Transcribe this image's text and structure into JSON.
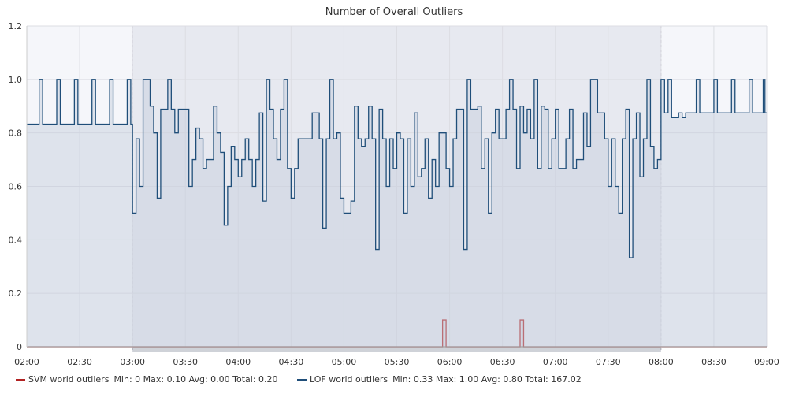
{
  "chart_data": {
    "type": "line",
    "title": "Number of Overall Outliers",
    "xlabel": "",
    "ylabel": "",
    "x_range": [
      "02:00",
      "09:00"
    ],
    "ylim": [
      0,
      1.2
    ],
    "x_ticks": [
      "02:00",
      "02:30",
      "03:00",
      "03:30",
      "04:00",
      "04:30",
      "05:00",
      "05:30",
      "06:00",
      "06:30",
      "07:00",
      "07:30",
      "08:00",
      "08:30",
      "09:00"
    ],
    "y_ticks": [
      "0",
      "0.2",
      "0.4",
      "0.6",
      "0.8",
      "1.0",
      "1.2"
    ],
    "grid": true,
    "shaded_window": [
      "03:00",
      "08:00"
    ],
    "legend_position": "bottom-left",
    "series": [
      {
        "name": "SVM world outliers",
        "color": "#b22222",
        "legend_label": "SVM world outliers",
        "stats_text": "Min: 0   Max: 0.10   Avg: 0.00   Total: 0.20",
        "points": [
          [
            "02:00",
            0
          ],
          [
            "05:56",
            0
          ],
          [
            "05:56",
            0.1
          ],
          [
            "05:58",
            0.1
          ],
          [
            "05:58",
            0
          ],
          [
            "06:40",
            0
          ],
          [
            "06:40",
            0.1
          ],
          [
            "06:42",
            0.1
          ],
          [
            "06:42",
            0
          ],
          [
            "09:00",
            0
          ]
        ]
      },
      {
        "name": "LOF world outliers",
        "color": "#1f4e79",
        "legend_label": "LOF world outliers",
        "stats_text": "Min: 0.33   Max: 1.00   Avg: 0.80   Total: 167.02",
        "points": [
          [
            "02:00",
            0.833
          ],
          [
            "02:07",
            1.0
          ],
          [
            "02:09",
            0.833
          ],
          [
            "02:17",
            1.0
          ],
          [
            "02:19",
            0.833
          ],
          [
            "02:27",
            1.0
          ],
          [
            "02:29",
            0.833
          ],
          [
            "02:37",
            1.0
          ],
          [
            "02:39",
            0.833
          ],
          [
            "02:47",
            1.0
          ],
          [
            "02:49",
            0.833
          ],
          [
            "02:57",
            1.0
          ],
          [
            "02:59",
            0.833
          ],
          [
            "03:00",
            0.5
          ],
          [
            "03:02",
            0.778
          ],
          [
            "03:04",
            0.6
          ],
          [
            "03:06",
            1.0
          ],
          [
            "03:10",
            0.9
          ],
          [
            "03:12",
            0.8
          ],
          [
            "03:14",
            0.556
          ],
          [
            "03:16",
            0.889
          ],
          [
            "03:20",
            1.0
          ],
          [
            "03:22",
            0.889
          ],
          [
            "03:24",
            0.8
          ],
          [
            "03:26",
            0.889
          ],
          [
            "03:32",
            0.6
          ],
          [
            "03:34",
            0.7
          ],
          [
            "03:36",
            0.818
          ],
          [
            "03:38",
            0.778
          ],
          [
            "03:40",
            0.667
          ],
          [
            "03:42",
            0.7
          ],
          [
            "03:46",
            0.9
          ],
          [
            "03:48",
            0.8
          ],
          [
            "03:50",
            0.727
          ],
          [
            "03:52",
            0.455
          ],
          [
            "03:54",
            0.6
          ],
          [
            "03:56",
            0.75
          ],
          [
            "03:58",
            0.7
          ],
          [
            "04:00",
            0.636
          ],
          [
            "04:02",
            0.7
          ],
          [
            "04:04",
            0.778
          ],
          [
            "04:06",
            0.7
          ],
          [
            "04:08",
            0.6
          ],
          [
            "04:10",
            0.7
          ],
          [
            "04:12",
            0.875
          ],
          [
            "04:14",
            0.545
          ],
          [
            "04:16",
            1.0
          ],
          [
            "04:18",
            0.889
          ],
          [
            "04:20",
            0.778
          ],
          [
            "04:22",
            0.7
          ],
          [
            "04:24",
            0.889
          ],
          [
            "04:26",
            1.0
          ],
          [
            "04:28",
            0.667
          ],
          [
            "04:30",
            0.556
          ],
          [
            "04:32",
            0.667
          ],
          [
            "04:34",
            0.778
          ],
          [
            "04:42",
            0.875
          ],
          [
            "04:46",
            0.778
          ],
          [
            "04:48",
            0.444
          ],
          [
            "04:50",
            0.778
          ],
          [
            "04:52",
            1.0
          ],
          [
            "04:54",
            0.778
          ],
          [
            "04:56",
            0.8
          ],
          [
            "04:58",
            0.556
          ],
          [
            "05:00",
            0.5
          ],
          [
            "05:04",
            0.545
          ],
          [
            "05:06",
            0.9
          ],
          [
            "05:08",
            0.778
          ],
          [
            "05:10",
            0.75
          ],
          [
            "05:12",
            0.778
          ],
          [
            "05:14",
            0.9
          ],
          [
            "05:16",
            0.778
          ],
          [
            "05:18",
            0.364
          ],
          [
            "05:20",
            0.889
          ],
          [
            "05:22",
            0.778
          ],
          [
            "05:24",
            0.6
          ],
          [
            "05:26",
            0.778
          ],
          [
            "05:28",
            0.667
          ],
          [
            "05:30",
            0.8
          ],
          [
            "05:32",
            0.778
          ],
          [
            "05:34",
            0.5
          ],
          [
            "05:36",
            0.778
          ],
          [
            "05:38",
            0.6
          ],
          [
            "05:40",
            0.875
          ],
          [
            "05:42",
            0.636
          ],
          [
            "05:44",
            0.667
          ],
          [
            "05:46",
            0.778
          ],
          [
            "05:48",
            0.556
          ],
          [
            "05:50",
            0.7
          ],
          [
            "05:52",
            0.6
          ],
          [
            "05:54",
            0.8
          ],
          [
            "05:58",
            0.667
          ],
          [
            "06:00",
            0.6
          ],
          [
            "06:02",
            0.778
          ],
          [
            "06:04",
            0.889
          ],
          [
            "06:08",
            0.364
          ],
          [
            "06:10",
            1.0
          ],
          [
            "06:12",
            0.889
          ],
          [
            "06:16",
            0.9
          ],
          [
            "06:18",
            0.667
          ],
          [
            "06:20",
            0.778
          ],
          [
            "06:22",
            0.5
          ],
          [
            "06:24",
            0.8
          ],
          [
            "06:26",
            0.889
          ],
          [
            "06:28",
            0.778
          ],
          [
            "06:32",
            0.889
          ],
          [
            "06:34",
            1.0
          ],
          [
            "06:36",
            0.889
          ],
          [
            "06:38",
            0.667
          ],
          [
            "06:40",
            0.9
          ],
          [
            "06:42",
            0.8
          ],
          [
            "06:44",
            0.889
          ],
          [
            "06:46",
            0.778
          ],
          [
            "06:48",
            1.0
          ],
          [
            "06:50",
            0.667
          ],
          [
            "06:52",
            0.9
          ],
          [
            "06:54",
            0.889
          ],
          [
            "06:56",
            0.667
          ],
          [
            "06:58",
            0.778
          ],
          [
            "07:00",
            0.889
          ],
          [
            "07:02",
            0.667
          ],
          [
            "07:06",
            0.778
          ],
          [
            "07:08",
            0.889
          ],
          [
            "07:10",
            0.667
          ],
          [
            "07:12",
            0.7
          ],
          [
            "07:16",
            0.875
          ],
          [
            "07:18",
            0.75
          ],
          [
            "07:20",
            1.0
          ],
          [
            "07:24",
            0.875
          ],
          [
            "07:28",
            0.778
          ],
          [
            "07:30",
            0.6
          ],
          [
            "07:32",
            0.778
          ],
          [
            "07:34",
            0.6
          ],
          [
            "07:36",
            0.5
          ],
          [
            "07:38",
            0.778
          ],
          [
            "07:40",
            0.889
          ],
          [
            "07:42",
            0.333
          ],
          [
            "07:44",
            0.778
          ],
          [
            "07:46",
            0.875
          ],
          [
            "07:48",
            0.636
          ],
          [
            "07:50",
            0.778
          ],
          [
            "07:52",
            1.0
          ],
          [
            "07:54",
            0.75
          ],
          [
            "07:56",
            0.667
          ],
          [
            "07:58",
            0.7
          ],
          [
            "08:00",
            1.0
          ],
          [
            "08:02",
            0.875
          ],
          [
            "08:04",
            1.0
          ],
          [
            "08:06",
            0.857
          ],
          [
            "08:10",
            0.875
          ],
          [
            "08:12",
            0.857
          ],
          [
            "08:14",
            0.875
          ],
          [
            "08:20",
            1.0
          ],
          [
            "08:22",
            0.875
          ],
          [
            "08:30",
            1.0
          ],
          [
            "08:32",
            0.875
          ],
          [
            "08:40",
            1.0
          ],
          [
            "08:42",
            0.875
          ],
          [
            "08:50",
            1.0
          ],
          [
            "08:52",
            0.875
          ],
          [
            "08:58",
            1.0
          ],
          [
            "08:59",
            0.875
          ],
          [
            "09:00",
            0.875
          ]
        ]
      }
    ]
  }
}
